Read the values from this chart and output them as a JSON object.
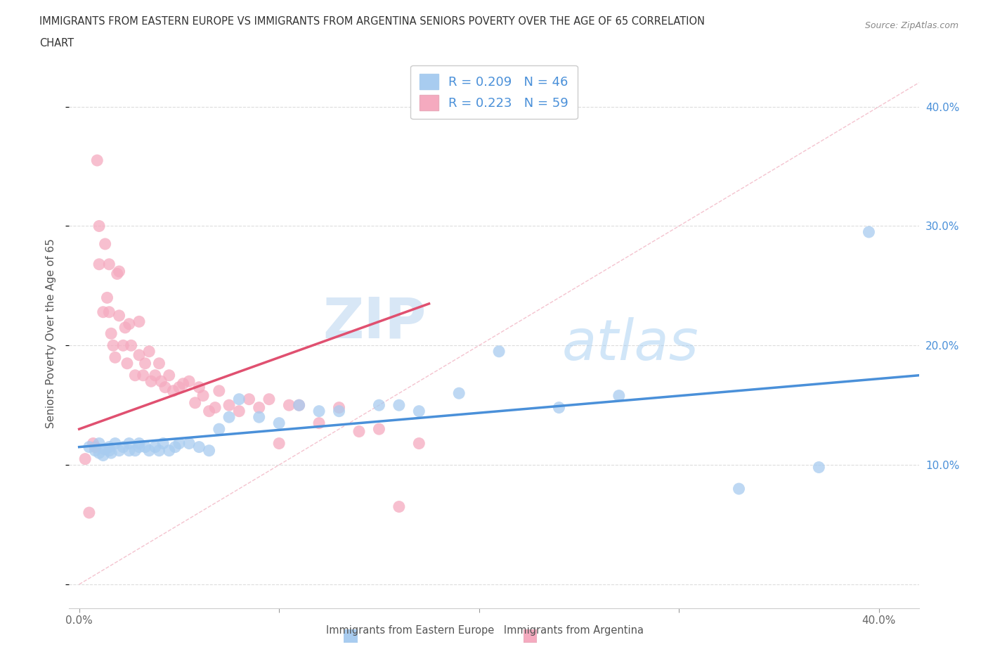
{
  "title_line1": "IMMIGRANTS FROM EASTERN EUROPE VS IMMIGRANTS FROM ARGENTINA SENIORS POVERTY OVER THE AGE OF 65 CORRELATION",
  "title_line2": "CHART",
  "source": "Source: ZipAtlas.com",
  "ylabel": "Seniors Poverty Over the Age of 65",
  "x_ticks": [
    0.0,
    0.1,
    0.2,
    0.3,
    0.4
  ],
  "x_tick_labels": [
    "0.0%",
    "",
    "",
    "",
    "40.0%"
  ],
  "y_ticks": [
    0.0,
    0.1,
    0.2,
    0.3,
    0.4
  ],
  "y_tick_labels_right": [
    "",
    "10.0%",
    "20.0%",
    "30.0%",
    "40.0%"
  ],
  "xlim": [
    -0.005,
    0.42
  ],
  "ylim": [
    -0.02,
    0.44
  ],
  "blue_color": "#A8CCF0",
  "pink_color": "#F5AABF",
  "blue_line_color": "#4A90D9",
  "pink_line_color": "#E05070",
  "diag_line_color": "#F0AABB",
  "grid_color": "#DDDDDD",
  "R_blue": 0.209,
  "N_blue": 46,
  "R_pink": 0.223,
  "N_pink": 59,
  "legend_label_blue": "Immigrants from Eastern Europe",
  "legend_label_pink": "Immigrants from Argentina",
  "watermark_zip": "ZIP",
  "watermark_atlas": "atlas",
  "blue_x": [
    0.005,
    0.008,
    0.01,
    0.01,
    0.012,
    0.013,
    0.015,
    0.015,
    0.016,
    0.018,
    0.02,
    0.022,
    0.025,
    0.025,
    0.028,
    0.03,
    0.03,
    0.033,
    0.035,
    0.038,
    0.04,
    0.042,
    0.045,
    0.048,
    0.05,
    0.055,
    0.06,
    0.065,
    0.07,
    0.075,
    0.08,
    0.09,
    0.1,
    0.11,
    0.12,
    0.13,
    0.15,
    0.16,
    0.17,
    0.19,
    0.21,
    0.24,
    0.27,
    0.33,
    0.37,
    0.395
  ],
  "blue_y": [
    0.115,
    0.112,
    0.11,
    0.118,
    0.108,
    0.113,
    0.115,
    0.112,
    0.11,
    0.118,
    0.112,
    0.115,
    0.112,
    0.118,
    0.112,
    0.118,
    0.115,
    0.115,
    0.112,
    0.115,
    0.112,
    0.118,
    0.112,
    0.115,
    0.118,
    0.118,
    0.115,
    0.112,
    0.13,
    0.14,
    0.155,
    0.14,
    0.135,
    0.15,
    0.145,
    0.145,
    0.15,
    0.15,
    0.145,
    0.16,
    0.195,
    0.148,
    0.158,
    0.08,
    0.098,
    0.295
  ],
  "pink_x": [
    0.003,
    0.005,
    0.007,
    0.008,
    0.009,
    0.01,
    0.01,
    0.012,
    0.013,
    0.014,
    0.015,
    0.015,
    0.016,
    0.017,
    0.018,
    0.019,
    0.02,
    0.02,
    0.022,
    0.023,
    0.024,
    0.025,
    0.026,
    0.028,
    0.03,
    0.03,
    0.032,
    0.033,
    0.035,
    0.036,
    0.038,
    0.04,
    0.041,
    0.043,
    0.045,
    0.047,
    0.05,
    0.052,
    0.055,
    0.058,
    0.06,
    0.062,
    0.065,
    0.068,
    0.07,
    0.075,
    0.08,
    0.085,
    0.09,
    0.095,
    0.1,
    0.105,
    0.11,
    0.12,
    0.13,
    0.14,
    0.15,
    0.16,
    0.17
  ],
  "pink_y": [
    0.105,
    0.06,
    0.118,
    0.115,
    0.355,
    0.3,
    0.268,
    0.228,
    0.285,
    0.24,
    0.268,
    0.228,
    0.21,
    0.2,
    0.19,
    0.26,
    0.262,
    0.225,
    0.2,
    0.215,
    0.185,
    0.218,
    0.2,
    0.175,
    0.22,
    0.192,
    0.175,
    0.185,
    0.195,
    0.17,
    0.175,
    0.185,
    0.17,
    0.165,
    0.175,
    0.162,
    0.165,
    0.168,
    0.17,
    0.152,
    0.165,
    0.158,
    0.145,
    0.148,
    0.162,
    0.15,
    0.145,
    0.155,
    0.148,
    0.155,
    0.118,
    0.15,
    0.15,
    0.135,
    0.148,
    0.128,
    0.13,
    0.065,
    0.118
  ]
}
